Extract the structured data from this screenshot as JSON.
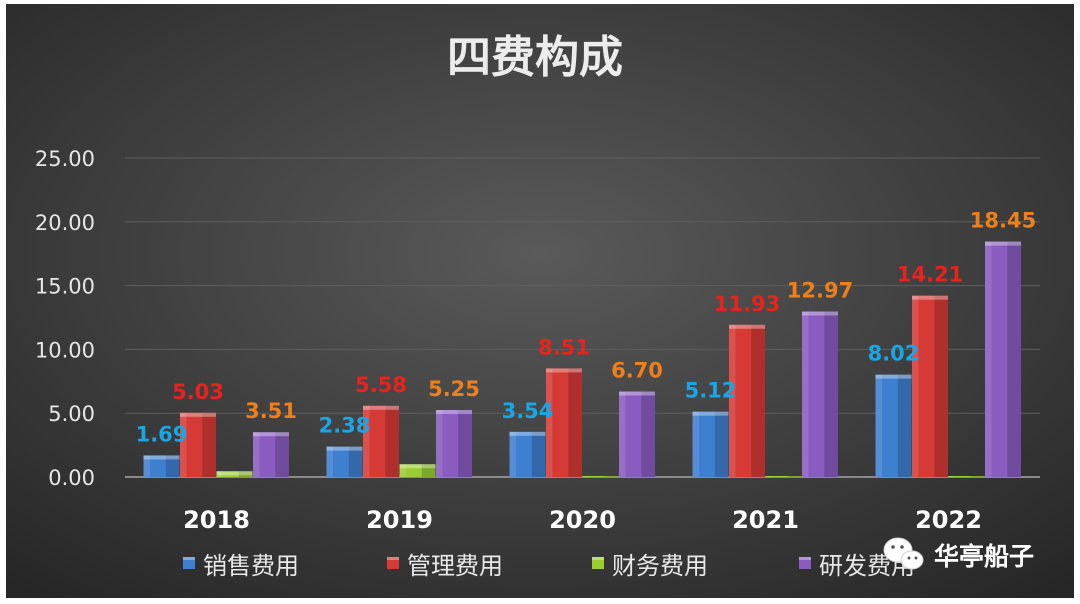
{
  "chart_data": {
    "type": "bar",
    "title": "四费构成",
    "categories": [
      "2018",
      "2019",
      "2020",
      "2021",
      "2022"
    ],
    "ylim": [
      0,
      25
    ],
    "yticks": [
      "0.00",
      "5.00",
      "10.00",
      "15.00",
      "20.00",
      "25.00"
    ],
    "grid": true,
    "legend_position": "bottom",
    "series": [
      {
        "name": "销售费用",
        "color": "#3f7fd0",
        "label_color": "#1aa5e6",
        "values": [
          1.69,
          2.38,
          3.54,
          5.12,
          8.02
        ],
        "labels": [
          "1.69",
          "2.38",
          "3.54",
          "5.12",
          "8.02"
        ]
      },
      {
        "name": "管理费用",
        "color": "#d63a36",
        "label_color": "#e8221c",
        "values": [
          5.03,
          5.58,
          8.51,
          11.93,
          14.21
        ],
        "labels": [
          "5.03",
          "5.58",
          "8.51",
          "11.93",
          "14.21"
        ]
      },
      {
        "name": "财务费用",
        "color": "#9acd32",
        "label_color": "#9acd32",
        "values": [
          0.45,
          1.0,
          0.05,
          0.05,
          0.05
        ],
        "labels": []
      },
      {
        "name": "研发费用",
        "color": "#8a5cc0",
        "label_color": "#ef7f1a",
        "values": [
          3.51,
          5.25,
          6.7,
          12.97,
          18.45
        ],
        "labels": [
          "3.51",
          "5.25",
          "6.70",
          "12.97",
          "18.45"
        ]
      }
    ]
  },
  "watermark": {
    "text": "华亭船子",
    "icon": "wechat-icon"
  }
}
